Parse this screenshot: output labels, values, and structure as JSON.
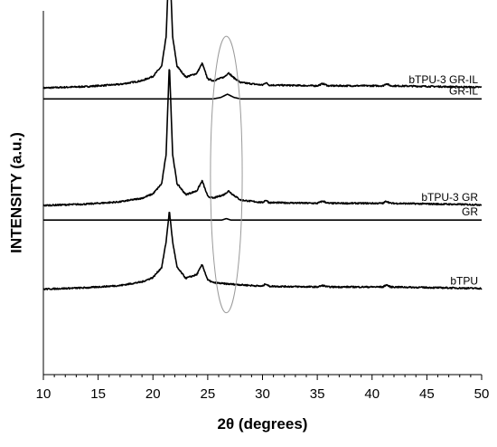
{
  "chart_data": {
    "type": "line",
    "title": "",
    "xlabel": "2θ (degrees)",
    "ylabel": "INTENSITY (a.u.)",
    "xlim": [
      10,
      50
    ],
    "ylim": [
      0,
      1
    ],
    "x_ticks": [
      10,
      15,
      20,
      25,
      30,
      35,
      40,
      45,
      50
    ],
    "x_tick_labels": [
      "10",
      "15",
      "20",
      "25",
      "30",
      "35",
      "40",
      "45",
      "50"
    ],
    "grid": false,
    "legend": "none (series labelled directly on the curves)",
    "series": [
      {
        "name": "bTPU-3 GR-IL",
        "baseline": 0.788,
        "x": [
          10,
          14,
          17,
          19,
          20,
          20.8,
          21.2,
          21.5,
          21.8,
          22.2,
          23,
          24,
          24.5,
          24.7,
          25,
          25.5,
          26.5,
          26.9,
          27.3,
          28,
          30,
          30.3,
          30.6,
          35,
          35.5,
          36,
          41,
          41.3,
          41.7,
          50
        ],
        "y": [
          0,
          0.004,
          0.01,
          0.02,
          0.032,
          0.06,
          0.14,
          0.37,
          0.14,
          0.06,
          0.03,
          0.04,
          0.068,
          0.05,
          0.025,
          0.02,
          0.03,
          0.042,
          0.03,
          0.015,
          0.008,
          0.015,
          0.008,
          0.006,
          0.012,
          0.006,
          0.006,
          0.012,
          0.006,
          0.002
        ]
      },
      {
        "name": "GR-IL",
        "baseline": 0.758,
        "x": [
          10,
          25.5,
          26.2,
          26.8,
          27.4,
          28,
          50
        ],
        "y": [
          0,
          0,
          0.004,
          0.013,
          0.004,
          0,
          0
        ]
      },
      {
        "name": "bTPU-3 GR",
        "baseline": 0.465,
        "x": [
          10,
          14,
          17,
          19,
          20,
          20.8,
          21.2,
          21.5,
          21.8,
          22.2,
          23,
          24,
          24.5,
          24.7,
          25,
          25.5,
          26.5,
          26.9,
          27.3,
          28,
          30,
          30.3,
          30.6,
          35,
          35.5,
          36,
          41,
          41.3,
          41.7,
          50
        ],
        "y": [
          0,
          0.004,
          0.01,
          0.02,
          0.032,
          0.06,
          0.14,
          0.39,
          0.14,
          0.06,
          0.03,
          0.04,
          0.068,
          0.05,
          0.025,
          0.02,
          0.03,
          0.04,
          0.03,
          0.015,
          0.008,
          0.015,
          0.008,
          0.006,
          0.012,
          0.006,
          0.006,
          0.012,
          0.006,
          0.002
        ]
      },
      {
        "name": "GR",
        "baseline": 0.425,
        "x": [
          10,
          26.3,
          26.7,
          27.1,
          50
        ],
        "y": [
          0,
          0,
          0.004,
          0,
          0
        ]
      },
      {
        "name": "bTPU",
        "baseline": 0.235,
        "x": [
          10,
          14,
          17,
          19,
          20,
          20.8,
          21.2,
          21.5,
          21.8,
          22.2,
          23,
          24,
          24.5,
          24.7,
          25,
          25.5,
          26.5,
          28,
          30,
          30.3,
          30.6,
          35,
          35.5,
          36,
          41,
          41.3,
          41.7,
          50
        ],
        "y": [
          0,
          0.004,
          0.01,
          0.02,
          0.032,
          0.06,
          0.13,
          0.215,
          0.13,
          0.06,
          0.03,
          0.04,
          0.068,
          0.05,
          0.025,
          0.018,
          0.015,
          0.012,
          0.008,
          0.015,
          0.008,
          0.006,
          0.01,
          0.006,
          0.006,
          0.012,
          0.006,
          0.002
        ]
      }
    ],
    "annotations": [
      {
        "type": "ellipse",
        "center_x": 26.7,
        "center_y": 0.55,
        "radius_x": 1.45,
        "radius_y": 0.38,
        "color": "#9a9a9a"
      }
    ]
  }
}
